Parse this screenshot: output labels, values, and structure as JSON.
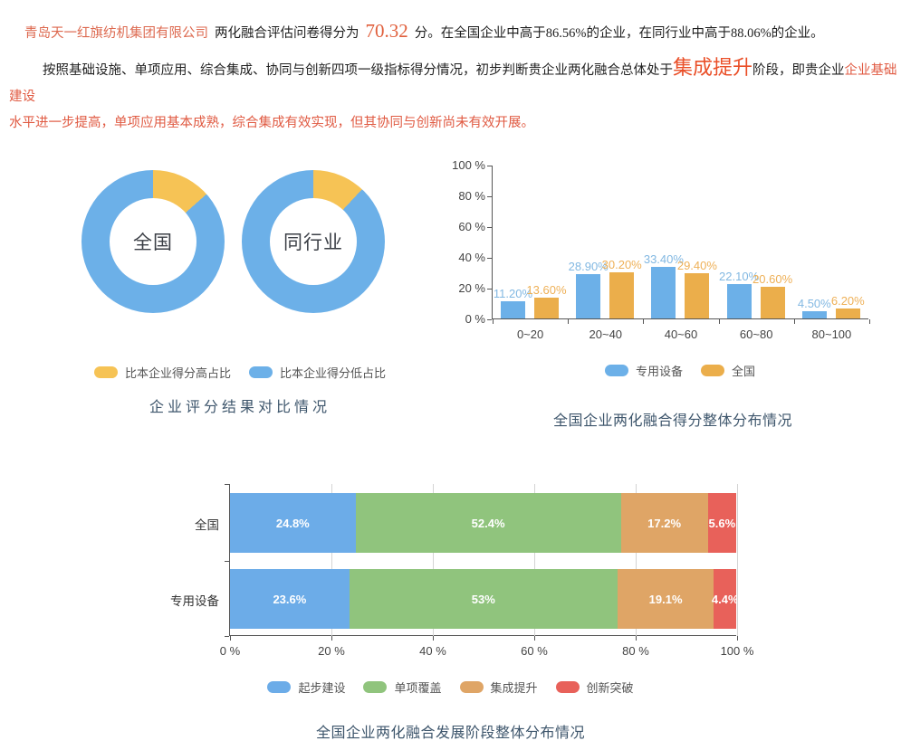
{
  "intro": {
    "company": "青岛天一红旗纺机集团有限公司",
    "score_label": "两化融合评估问卷得分为",
    "score": "70.32",
    "score_tail": "分。在全国企业中高于86.56%的企业，在同行业中高于88.06%的企业。",
    "judgement_prefix": "按照基础设施、单项应用、综合集成、协同与创新四项一级指标得分情况，初步判断贵企业两化融合总体处于",
    "stage": "集成提升",
    "judgement_mid": "阶段，即贵企业",
    "stage_detail_line1": "企业基础建设",
    "stage_detail_line2": "水平进一步提高，单项应用基本成熟，综合集成有效实现，但其协同与创新尚未有效开展。"
  },
  "palette": {
    "company_highlight": "#dd6a50",
    "score_accent": "#e05f3c",
    "stage_accent": "#ea4f28",
    "detail_highlight": "#e05a42",
    "title_color": "#3e566c",
    "blue": "#6cb0e8",
    "yellow": "#f6c355",
    "amber": "#ebae4b",
    "green": "#90c47d",
    "orange": "#dfa566",
    "red": "#e8615a"
  },
  "chart_data": [
    {
      "type": "pie",
      "subtype": "donut-pair",
      "title": "企业评分结果对比情况",
      "donuts": [
        {
          "label": "全国",
          "slices": [
            {
              "name": "比本企业得分高占比",
              "value": 13.44
            },
            {
              "name": "比本企业得分低占比",
              "value": 86.56
            }
          ]
        },
        {
          "label": "同行业",
          "slices": [
            {
              "name": "比本企业得分高占比",
              "value": 11.94
            },
            {
              "name": "比本企业得分低占比",
              "value": 88.06
            }
          ]
        }
      ],
      "legend": [
        {
          "label": "比本企业得分高占比",
          "color": "#f6c355"
        },
        {
          "label": "比本企业得分低占比",
          "color": "#6cb0e8"
        }
      ],
      "legend_position": "bottom"
    },
    {
      "type": "bar",
      "title": "全国企业两化融合得分整体分布情况",
      "categories": [
        "0~20",
        "20~40",
        "40~60",
        "60~80",
        "80~100"
      ],
      "series": [
        {
          "name": "专用设备",
          "color": "#6cb0e8",
          "label_color": "#82b8e2",
          "values": [
            11.2,
            28.9,
            33.4,
            22.1,
            4.5
          ],
          "labels": [
            "11.20%",
            "28.90%",
            "33.40%",
            "22.10%",
            "4.50%"
          ]
        },
        {
          "name": "全国",
          "color": "#ebae4b",
          "label_color": "#eeb057",
          "values": [
            13.6,
            30.2,
            29.4,
            20.6,
            6.2
          ],
          "labels": [
            "13.60%",
            "30.20%",
            "29.40%",
            "20.60%",
            "6.20%"
          ]
        }
      ],
      "ylabels": [
        "100 %",
        "80 %",
        "60 %",
        "40 %",
        "20 %",
        "0 %"
      ],
      "ylim": [
        0,
        100
      ],
      "grid": false,
      "legend_position": "bottom"
    },
    {
      "type": "bar",
      "subtype": "stacked-horizontal",
      "title": "全国企业两化融合发展阶段整体分布情况",
      "rows": [
        {
          "label": "全国",
          "values": [
            24.8,
            52.4,
            17.2,
            5.6
          ],
          "labels": [
            "24.8%",
            "52.4%",
            "17.2%",
            "5.6%"
          ]
        },
        {
          "label": "专用设备",
          "values": [
            23.6,
            53.0,
            19.1,
            4.4
          ],
          "labels": [
            "23.6%",
            "53%",
            "19.1%",
            "4.4%"
          ]
        }
      ],
      "segments": [
        {
          "name": "起步建设",
          "color": "#6cace8"
        },
        {
          "name": "单项覆盖",
          "color": "#90c47d"
        },
        {
          "name": "集成提升",
          "color": "#dfa566"
        },
        {
          "name": "创新突破",
          "color": "#e8615a"
        }
      ],
      "xlabels": [
        "0 %",
        "20 %",
        "40 %",
        "60 %",
        "80 %",
        "100 %"
      ],
      "xlim": [
        0,
        100
      ],
      "grid": true,
      "legend_position": "bottom"
    }
  ]
}
